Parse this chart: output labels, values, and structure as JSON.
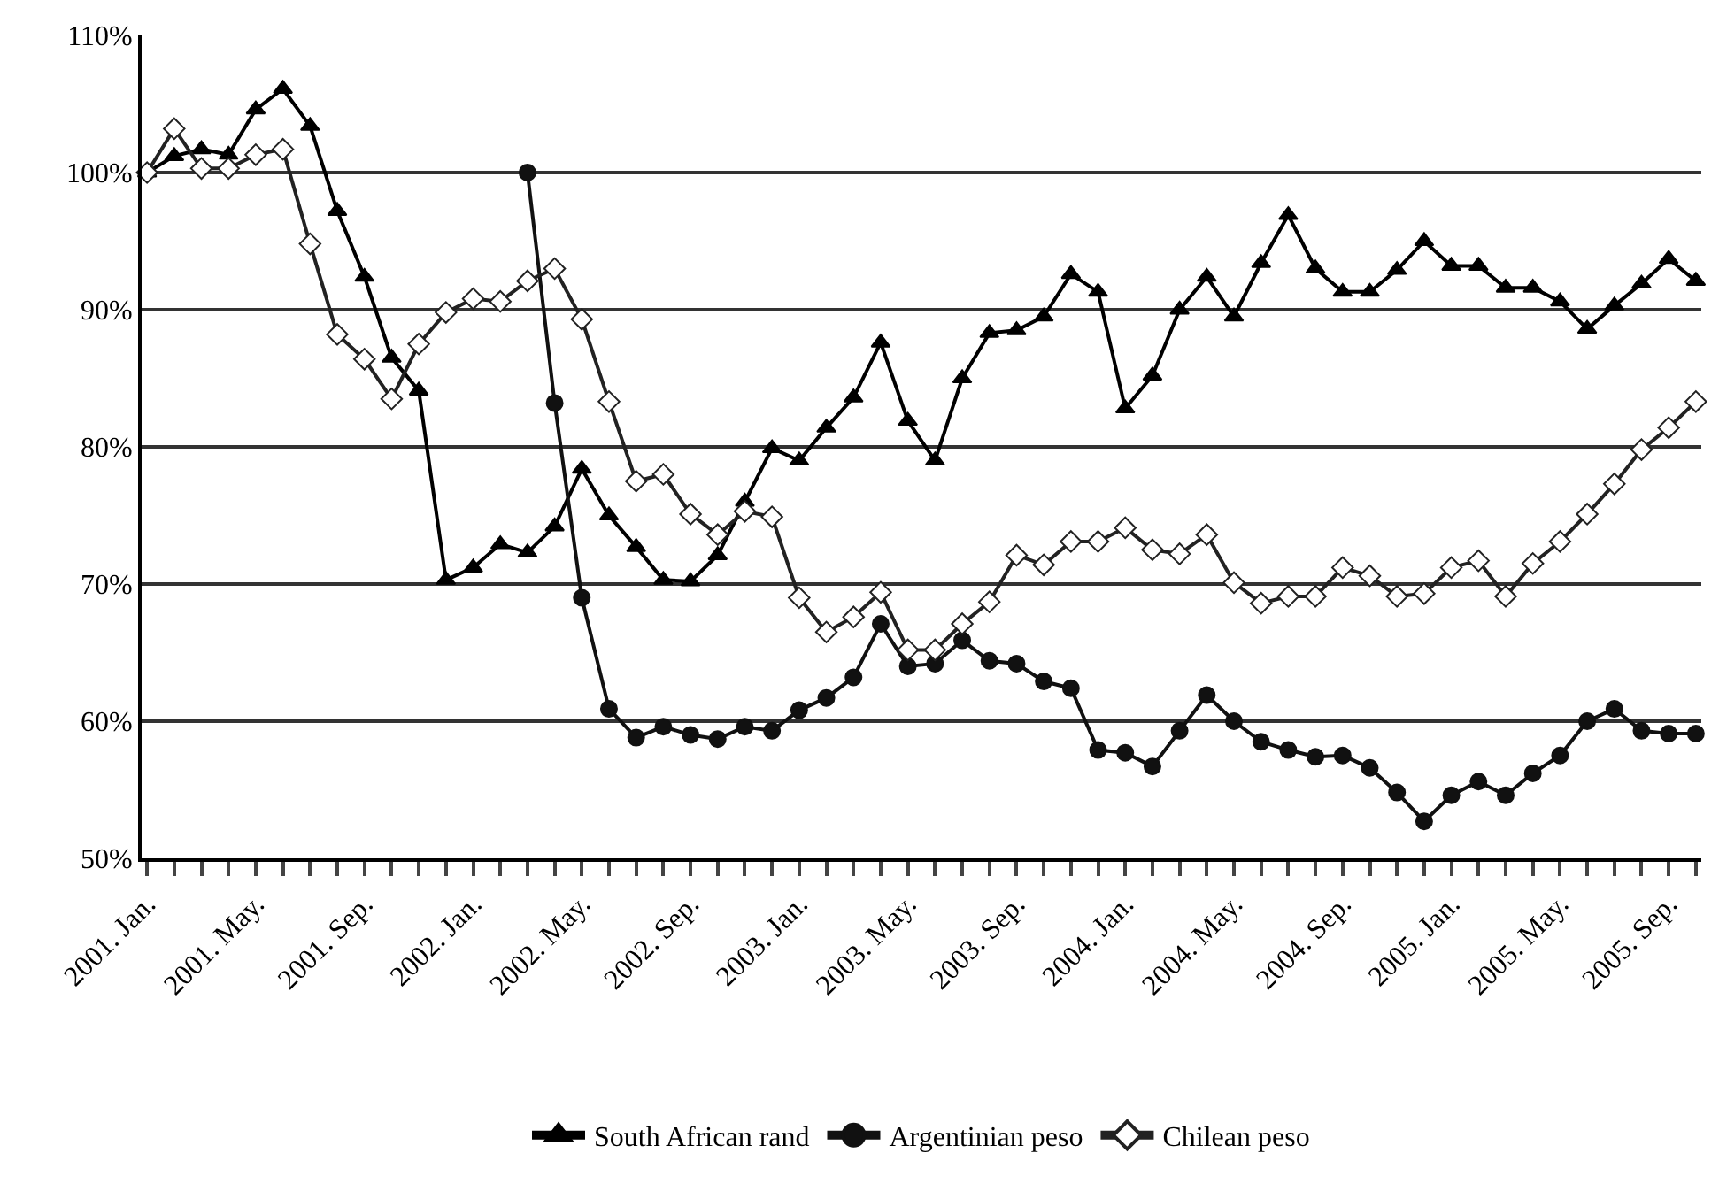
{
  "chart_data": {
    "type": "line",
    "categories": [
      "2001. Jan.",
      null,
      null,
      null,
      "2001. May.",
      null,
      null,
      null,
      "2001. Sep.",
      null,
      null,
      null,
      "2002. Jan.",
      null,
      null,
      null,
      "2002. May.",
      null,
      null,
      null,
      "2002. Sep.",
      null,
      null,
      null,
      "2003. Jan.",
      null,
      null,
      null,
      "2003. May.",
      null,
      null,
      null,
      "2003. Sep.",
      null,
      null,
      null,
      "2004. Jan.",
      null,
      null,
      null,
      "2004. May.",
      null,
      null,
      null,
      "2004. Sep.",
      null,
      null,
      null,
      "2005. Jan.",
      null,
      null,
      null,
      "2005. May.",
      null,
      null,
      null,
      "2005. Sep.",
      null
    ],
    "series": [
      {
        "name": "South African rand",
        "color": "#000000",
        "marker": "triangle",
        "values": [
          100,
          101.2,
          101.7,
          101.3,
          104.6,
          106.1,
          103.4,
          97.2,
          92.4,
          86.5,
          84.1,
          70.3,
          71.2,
          72.9,
          72.3,
          74.2,
          78.4,
          75,
          72.7,
          70.3,
          70.2,
          72.1,
          76,
          79.9,
          79,
          81.4,
          83.6,
          87.6,
          81.9,
          79,
          85,
          88.3,
          88.5,
          89.5,
          92.6,
          91.3,
          82.8,
          85.2,
          90,
          92.4,
          89.5,
          93.4,
          96.9,
          93,
          91.3,
          91.3,
          92.9,
          95,
          93.2,
          93.2,
          91.6,
          91.6,
          90.6,
          88.6,
          90.3,
          91.9,
          93.7,
          92.1
        ]
      },
      {
        "name": "Argentinian peso",
        "color": "#111111",
        "marker": "circle",
        "values": [
          null,
          null,
          null,
          null,
          null,
          null,
          null,
          null,
          null,
          null,
          null,
          null,
          null,
          null,
          100,
          83.2,
          69,
          60.9,
          58.8,
          59.6,
          59,
          58.7,
          59.6,
          59.3,
          60.8,
          61.7,
          63.2,
          67.1,
          64,
          64.2,
          65.9,
          64.4,
          64.2,
          62.9,
          62.4,
          57.9,
          57.7,
          56.7,
          59.3,
          61.9,
          60,
          58.5,
          57.9,
          57.4,
          57.5,
          56.6,
          54.8,
          52.7,
          54.6,
          55.6,
          54.6,
          56.2,
          57.5,
          60,
          60.9,
          59.3,
          59.1,
          59.1
        ]
      },
      {
        "name": "Chilean peso",
        "color": "#222222",
        "marker": "diamond",
        "values": [
          100,
          103.2,
          100.3,
          100.3,
          101.3,
          101.7,
          94.8,
          88.2,
          86.4,
          83.5,
          87.5,
          89.8,
          90.8,
          90.6,
          92.1,
          93,
          89.3,
          83.3,
          77.5,
          78,
          75.1,
          73.6,
          75.3,
          74.9,
          69,
          66.5,
          67.6,
          69.4,
          65.2,
          65.2,
          67.1,
          68.7,
          72.1,
          71.4,
          73.1,
          73.1,
          74.1,
          72.5,
          72.2,
          73.6,
          70.1,
          68.6,
          69.1,
          69.1,
          71.2,
          70.6,
          69.1,
          69.3,
          71.2,
          71.7,
          69.1,
          71.5,
          73.1,
          75.1,
          77.3,
          79.8,
          81.4,
          83.3
        ]
      }
    ],
    "ylim": [
      50,
      110
    ],
    "yticks": [
      {
        "value": 50,
        "label": "50%"
      },
      {
        "value": 60,
        "label": "60%"
      },
      {
        "value": 70,
        "label": "70%"
      },
      {
        "value": 80,
        "label": "80%"
      },
      {
        "value": 90,
        "label": "90%"
      },
      {
        "value": 100,
        "label": "100%"
      },
      {
        "value": 110,
        "label": "110%"
      }
    ],
    "grid": "y",
    "legend": "bottom",
    "line_style": "solid"
  }
}
